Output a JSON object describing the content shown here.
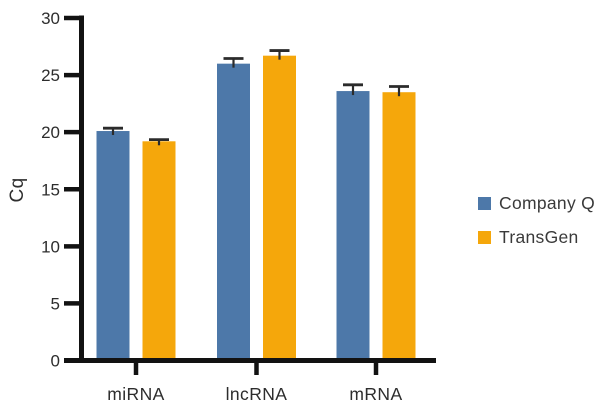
{
  "chart_data": {
    "type": "bar",
    "title": "",
    "xlabel": "",
    "ylabel": "Cq",
    "categories": [
      "miRNA",
      "lncRNA",
      "mRNA"
    ],
    "series": [
      {
        "name": "Company Q",
        "color": "#4D78A9",
        "values": [
          20.1,
          26.0,
          23.6
        ],
        "errors": [
          0.25,
          0.45,
          0.55
        ]
      },
      {
        "name": "TransGen",
        "color": "#F5A70B",
        "values": [
          19.2,
          26.7,
          23.5
        ],
        "errors": [
          0.15,
          0.45,
          0.5
        ]
      }
    ],
    "ylim": [
      0,
      30
    ],
    "yticks": [
      0,
      5,
      10,
      15,
      20,
      25,
      30
    ],
    "grid": false,
    "error_bars": true,
    "legend_position": "right",
    "axis_color": "#121212",
    "error_bar_color": "#2b2b2b",
    "tick_label_color": "#2d2d2d",
    "category_label_color": "#2d2d2d"
  }
}
